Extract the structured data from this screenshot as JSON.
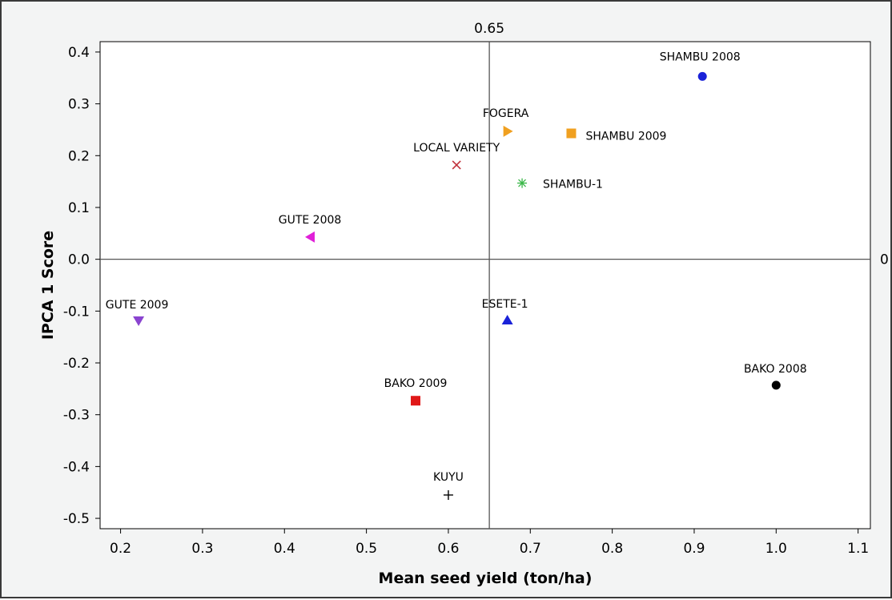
{
  "chart_data": {
    "type": "scatter",
    "title": "",
    "xlabel": "Mean seed yield (ton/ha)",
    "ylabel": "IPCA 1 Score",
    "xlim": [
      0.175,
      1.115
    ],
    "ylim": [
      -0.52,
      0.42
    ],
    "x_ticks": [
      "0.2",
      "0.3",
      "0.4",
      "0.5",
      "0.6",
      "0.7",
      "0.8",
      "0.9",
      "1.0",
      "1.1"
    ],
    "y_ticks": [
      "0.4",
      "0.3",
      "0.2",
      "0.1",
      "0.0",
      "-0.1",
      "-0.2",
      "-0.3",
      "-0.4",
      "-0.5"
    ],
    "reference_lines": {
      "vertical": {
        "x": 0.65,
        "label": "0.65"
      },
      "horizontal": {
        "y": 0.0,
        "label": "0"
      }
    },
    "grid": false,
    "legend": "none",
    "points": [
      {
        "label": "SHAMBU 2008",
        "x": 0.91,
        "y": 0.353,
        "marker": "circle",
        "color": "#1a22d8"
      },
      {
        "label": "FOGERA",
        "x": 0.672,
        "y": 0.247,
        "marker": "triangle-right",
        "color": "#f0a020"
      },
      {
        "label": "SHAMBU 2009",
        "x": 0.75,
        "y": 0.243,
        "marker": "square",
        "color": "#f0a020"
      },
      {
        "label": "LOCAL VARIETY",
        "x": 0.61,
        "y": 0.182,
        "marker": "x",
        "color": "#c0303a"
      },
      {
        "label": "SHAMBU-1",
        "x": 0.69,
        "y": 0.147,
        "marker": "asterisk",
        "color": "#3cb84a"
      },
      {
        "label": "GUTE 2008",
        "x": 0.432,
        "y": 0.043,
        "marker": "triangle-left",
        "color": "#e020d8"
      },
      {
        "label": "GUTE 2009",
        "x": 0.222,
        "y": -0.118,
        "marker": "triangle-down",
        "color": "#8a44d0"
      },
      {
        "label": "ESETE-1",
        "x": 0.672,
        "y": -0.118,
        "marker": "triangle-up",
        "color": "#1a22d8"
      },
      {
        "label": "BAKO 2008",
        "x": 1.0,
        "y": -0.243,
        "marker": "circle",
        "color": "#000000"
      },
      {
        "label": "BAKO 2009",
        "x": 0.56,
        "y": -0.273,
        "marker": "square",
        "color": "#e01818"
      },
      {
        "label": "KUYU",
        "x": 0.6,
        "y": -0.455,
        "marker": "plus",
        "color": "#000000"
      }
    ]
  }
}
